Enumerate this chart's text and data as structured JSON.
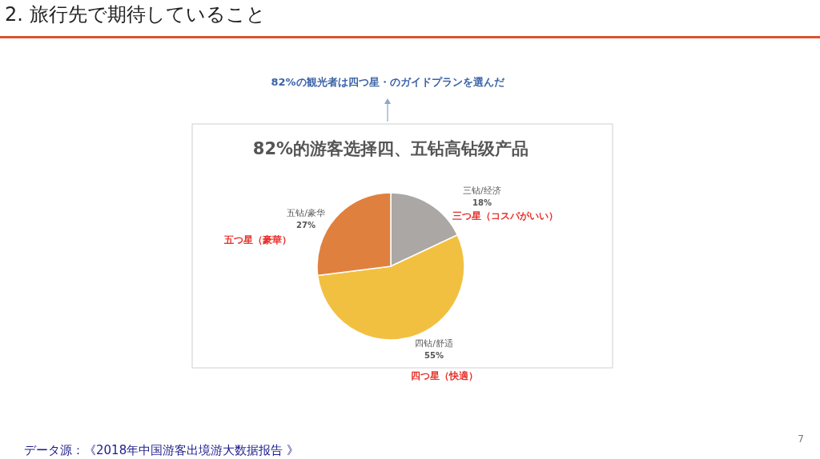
{
  "chart_data": {
    "type": "pie",
    "title": "82%的游客选择四、五钻高钻级产品",
    "categories": [
      "三钻/经济",
      "四钻/舒适",
      "五钻/豪华"
    ],
    "values": [
      18,
      55,
      27
    ],
    "value_labels": [
      "18%",
      "55%",
      "27%"
    ],
    "colors": [
      "#aba7a4",
      "#f2c041",
      "#e0803f"
    ],
    "annotations": [
      "2. 旅行先で期待していること",
      "82%の観光者は四つ星・のガイドプランを選んだ",
      "三つ星（コスパがいい）",
      "四つ星（快適）",
      "五つ星（豪華）",
      "データ源：《2018年中国游客出境游大数据报告 》",
      "7"
    ]
  }
}
